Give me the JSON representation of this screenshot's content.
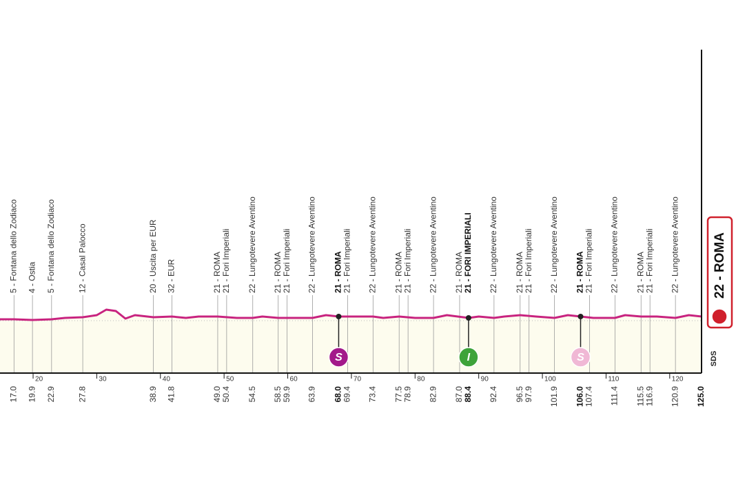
{
  "chart_data": {
    "type": "line",
    "x": [
      14.8,
      17,
      19.9,
      22.9,
      25,
      27.8,
      30,
      31.5,
      33,
      34.5,
      36,
      38.9,
      41.8,
      44,
      46,
      49,
      52,
      54.5,
      56,
      58.5,
      61,
      63.9,
      66,
      68,
      70,
      73.4,
      75,
      77.5,
      80,
      82.9,
      85,
      88.4,
      90,
      92.4,
      94,
      96.5,
      99,
      101.9,
      104,
      106,
      108,
      111.4,
      113,
      115.5,
      118,
      120.9,
      123,
      125
    ],
    "values": [
      39,
      39,
      38.5,
      39,
      40,
      40.5,
      42,
      46,
      45,
      39.5,
      42,
      40.5,
      41,
      40,
      41,
      41,
      40,
      40,
      41,
      40,
      40,
      40,
      42,
      41,
      41,
      41,
      40,
      41,
      40,
      40,
      42,
      40,
      41,
      40,
      41,
      42,
      41,
      40,
      42,
      41,
      40,
      40,
      42,
      41,
      41,
      40,
      42,
      41
    ],
    "color": "#c8237f",
    "fill": "#fdfcee",
    "xlim": [
      14.8,
      125
    ],
    "ylim": [
      0,
      260
    ],
    "xticks": [
      20,
      30,
      40,
      50,
      60,
      70,
      80,
      90,
      100,
      110,
      120
    ],
    "locations": [
      {
        "km": {
          "value": 17,
          "label": "17.0"
        },
        "name": "5 - Fontana dello Zodiaco"
      },
      {
        "km": 19.9,
        "name": "4 - Ostia"
      },
      {
        "km": 22.9,
        "name": "5 - Fontana dello Zodiaco"
      },
      {
        "km": 27.8,
        "name": "12 - Casal Palocco"
      },
      {
        "km": 38.9,
        "name": "20 - Uscita per EUR"
      },
      {
        "km": 41.8,
        "name": "32 - EUR"
      },
      {
        "km": {
          "value": 49,
          "label": "49.0"
        },
        "name": "21 - ROMA"
      },
      {
        "km": 50.4,
        "name": "21 - Fori Imperiali"
      },
      {
        "km": 54.5,
        "name": "22 - Lungotevere Aventino"
      },
      {
        "km": 58.5,
        "name": "21 - ROMA"
      },
      {
        "km": 59.9,
        "name": "21 - Fori Imperiali"
      },
      {
        "km": 63.9,
        "name": "22 - Lungotevere Aventino"
      },
      {
        "km": {
          "value": 68,
          "label": "68.0"
        },
        "name": "21 - ROMA",
        "bold": true,
        "sprint": {
          "letter": "S",
          "color": "#a3198a"
        }
      },
      {
        "km": 69.4,
        "name": "21 - Fori Imperiali"
      },
      {
        "km": 73.4,
        "name": "22 - Lungotevere Aventino"
      },
      {
        "km": 77.5,
        "name": "21 - ROMA"
      },
      {
        "km": 78.9,
        "name": "21 - Fori Imperiali"
      },
      {
        "km": 82.9,
        "name": "22 - Lungotevere Aventino"
      },
      {
        "km": {
          "value": 87,
          "label": "87.0"
        },
        "name": "21 - ROMA"
      },
      {
        "km": 88.4,
        "name": "21 - FORI IMPERIALI",
        "bold": true,
        "sprint": {
          "letter": "I",
          "color": "#3ea33a"
        }
      },
      {
        "km": 92.4,
        "name": "22 - Lungotevere Aventino"
      },
      {
        "km": 96.5,
        "name": "21 - ROMA"
      },
      {
        "km": 97.9,
        "name": "21 - Fori Imperiali"
      },
      {
        "km": 101.9,
        "name": "22 - Lungotevere Aventino"
      },
      {
        "km": {
          "value": 106,
          "label": "106.0"
        },
        "name": "21 - ROMA",
        "bold": true,
        "sprint": {
          "letter": "S",
          "color": "#f0b8d5"
        }
      },
      {
        "km": 107.4,
        "name": "21 - Fori Imperiali"
      },
      {
        "km": 111.4,
        "name": "22 - Lungotevere Aventino"
      },
      {
        "km": 115.5,
        "name": "21 - ROMA"
      },
      {
        "km": 116.9,
        "name": "21 - Fori Imperiali"
      },
      {
        "km": 120.9,
        "name": "22 - Lungotevere Aventino"
      }
    ],
    "finish": {
      "km": {
        "value": 125,
        "label": "125.0"
      },
      "name": "22 - ROMA",
      "color": "#d0202c"
    },
    "logo": "SDS"
  }
}
